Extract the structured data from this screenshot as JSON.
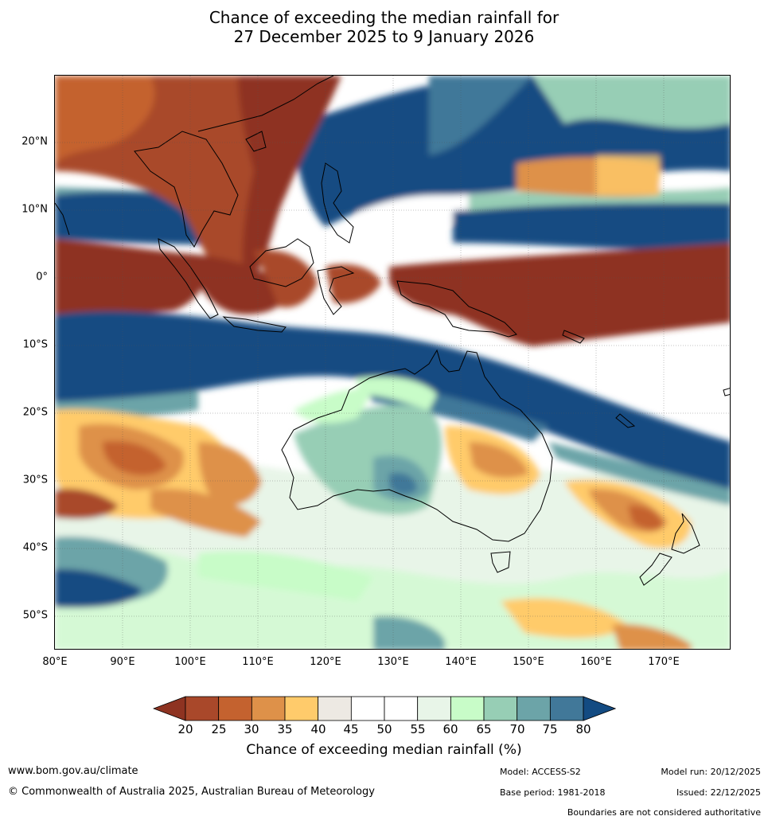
{
  "title": {
    "line1": "Chance of exceeding the median rainfall for",
    "line2": "27 December 2025 to 9 January 2026"
  },
  "map": {
    "lat_ticks": [
      "20°N",
      "10°N",
      "0°",
      "10°S",
      "20°S",
      "30°S",
      "40°S",
      "50°S"
    ],
    "lon_ticks": [
      "80°E",
      "90°E",
      "100°E",
      "110°E",
      "120°E",
      "130°E",
      "140°E",
      "150°E",
      "160°E",
      "170°E"
    ],
    "grid": true,
    "coastlines": true
  },
  "colorbar": {
    "ticks": [
      "20",
      "25",
      "30",
      "35",
      "40",
      "45",
      "50",
      "55",
      "60",
      "65",
      "70",
      "75",
      "80"
    ],
    "colors": [
      "#8e3321",
      "#a9482a",
      "#c4622f",
      "#de9149",
      "#ffcb6b",
      "#ede9e3",
      "#ffffff",
      "#ffffff",
      "#e8f5e8",
      "#c8fcc8",
      "#97ceb5",
      "#6ca4a8",
      "#417899",
      "#134b82"
    ],
    "label": "Chance of exceeding median rainfall (%)"
  },
  "footer": {
    "website": "www.bom.gov.au/climate",
    "copyright": "© Commonwealth of Australia 2025, Australian Bureau of Meteorology",
    "model": "Model: ACCESS-S2",
    "model_run": "Model run: 20/12/2025",
    "base_period": "Base period: 1981-2018",
    "issued": "Issued: 22/12/2025",
    "disclaimer": "Boundaries are not considered authoritative"
  }
}
